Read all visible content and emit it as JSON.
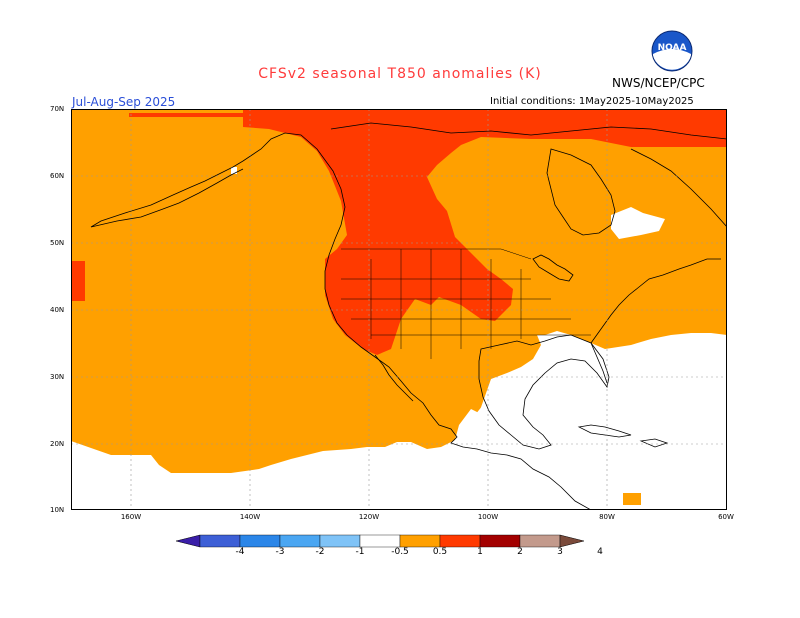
{
  "title": "CFSv2 seasonal T850 anomalies (K)",
  "org": "NWS/NCEP/CPC",
  "season": "Jul-Aug-Sep 2025",
  "initial_conditions": "Initial conditions: 1May2025-10May2025",
  "logo_text": "NOAA",
  "lat_labels": [
    "70N",
    "60N",
    "50N",
    "40N",
    "30N",
    "20N",
    "10N"
  ],
  "lon_labels": [
    "160W",
    "140W",
    "120W",
    "100W",
    "80W",
    "60W"
  ],
  "colorbar": {
    "labels": [
      "-4",
      "-3",
      "-2",
      "-1",
      "-0.5",
      "0.5",
      "1",
      "2",
      "3",
      "4"
    ],
    "colors": [
      "#3a1ea8",
      "#3d5fd6",
      "#2b86e8",
      "#4aa6f2",
      "#7fc3f7",
      "#ffffff",
      "#ffa000",
      "#ff3a00",
      "#a30000",
      "#c39a8c",
      "#7a4a3a"
    ]
  },
  "map": {
    "ocean_anomaly_color": "#ffa000",
    "warm_anomaly_color": "#ff3a00",
    "land_line_color": "#000000"
  }
}
